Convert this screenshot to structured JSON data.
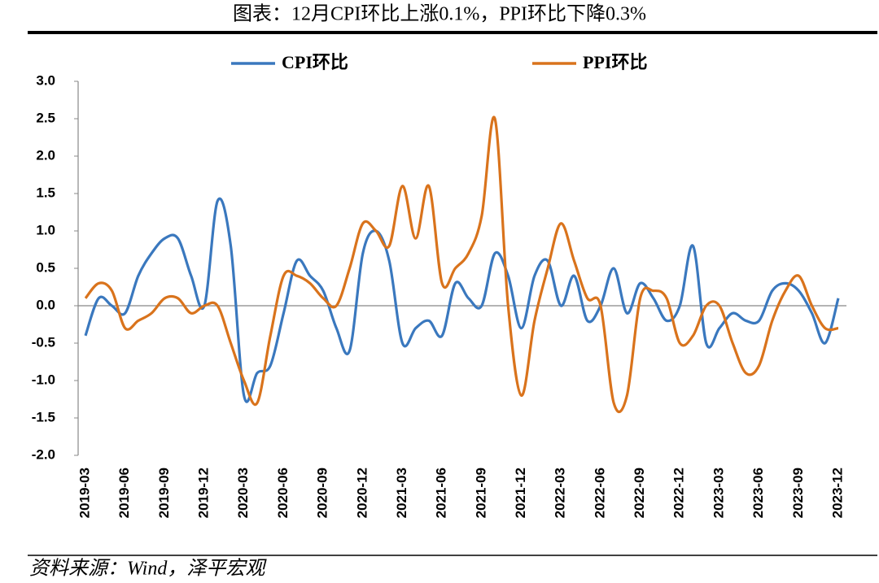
{
  "chart_data": {
    "type": "line",
    "title": "图表：12月CPI环比上涨0.1%，PPI环比下降0.3%",
    "source": "资料来源：Wind，泽平宏观",
    "categories": [
      "2019-03",
      null,
      null,
      "2019-06",
      null,
      null,
      "2019-09",
      null,
      null,
      "2019-12",
      null,
      null,
      "2020-03",
      null,
      null,
      "2020-06",
      null,
      null,
      "2020-09",
      null,
      null,
      "2020-12",
      null,
      null,
      "2021-03",
      null,
      null,
      "2021-06",
      null,
      null,
      "2021-09",
      null,
      null,
      "2021-12",
      null,
      null,
      "2022-03",
      null,
      null,
      "2022-06",
      null,
      null,
      "2022-09",
      null,
      null,
      "2022-12",
      null,
      null,
      "2023-03",
      null,
      null,
      "2023-06",
      null,
      null,
      "2023-09",
      null,
      null,
      "2023-12"
    ],
    "series": [
      {
        "name": "CPI环比",
        "color": "#3a78be",
        "values": [
          -0.4,
          0.1,
          0.0,
          -0.1,
          0.4,
          0.7,
          0.9,
          0.9,
          0.4,
          0.0,
          1.4,
          0.8,
          -1.2,
          -0.9,
          -0.8,
          -0.1,
          0.6,
          0.4,
          0.2,
          -0.3,
          -0.6,
          0.7,
          1.0,
          0.6,
          -0.5,
          -0.3,
          -0.2,
          -0.4,
          0.3,
          0.1,
          0.0,
          0.7,
          0.4,
          -0.3,
          0.4,
          0.6,
          0.0,
          0.4,
          -0.2,
          0.0,
          0.5,
          -0.1,
          0.3,
          0.1,
          -0.2,
          0.0,
          0.8,
          -0.5,
          -0.3,
          -0.1,
          -0.2,
          -0.2,
          0.2,
          0.3,
          0.2,
          -0.1,
          -0.5,
          0.1
        ]
      },
      {
        "name": "PPI环比",
        "color": "#d9731c",
        "values": [
          0.1,
          0.3,
          0.2,
          -0.3,
          -0.2,
          -0.1,
          0.1,
          0.1,
          -0.1,
          0.0,
          0.0,
          -0.5,
          -1.0,
          -1.3,
          -0.4,
          0.4,
          0.4,
          0.3,
          0.1,
          0.0,
          0.5,
          1.1,
          1.0,
          0.8,
          1.6,
          0.9,
          1.6,
          0.3,
          0.5,
          0.7,
          1.2,
          2.5,
          0.0,
          -1.2,
          -0.2,
          0.5,
          1.1,
          0.6,
          0.1,
          0.0,
          -1.3,
          -1.2,
          0.1,
          0.2,
          0.1,
          -0.5,
          -0.4,
          0.0,
          0.0,
          -0.5,
          -0.9,
          -0.8,
          -0.2,
          0.2,
          0.4,
          0.0,
          -0.3,
          -0.3
        ]
      }
    ],
    "ylim": [
      -2.0,
      3.0
    ],
    "yticks": [
      {
        "value": -2.0,
        "label": "-2.0"
      },
      {
        "value": -1.5,
        "label": "-1.5"
      },
      {
        "value": -1.0,
        "label": "-1.0"
      },
      {
        "value": -0.5,
        "label": "-0.5"
      },
      {
        "value": 0.0,
        "label": "0.0"
      },
      {
        "value": 0.5,
        "label": "0.5"
      },
      {
        "value": 1.0,
        "label": "1.0"
      },
      {
        "value": 1.5,
        "label": "1.5"
      },
      {
        "value": 2.0,
        "label": "2.0"
      },
      {
        "value": 2.5,
        "label": "2.5"
      },
      {
        "value": 3.0,
        "label": "3.0"
      }
    ],
    "legend": "top"
  }
}
